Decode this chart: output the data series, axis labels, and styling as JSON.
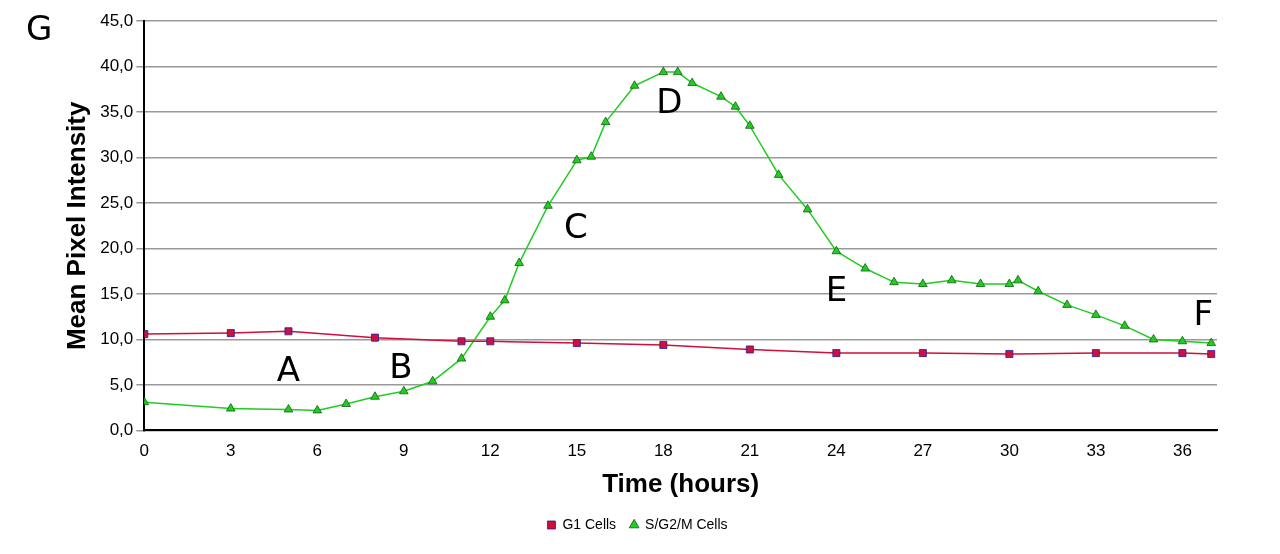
{
  "chart_data": {
    "type": "line",
    "xlabel": "Time (hours)",
    "ylabel": "Mean Pixel Intensity",
    "annotations": [
      "G",
      {
        "text": "A",
        "x": 5,
        "y": 2.3
      },
      {
        "text": "B",
        "x": 9,
        "y": 4.3
      },
      {
        "text": "C",
        "x": 14,
        "y": 24.7
      },
      {
        "text": "D",
        "x": 18,
        "y": 39.4
      },
      {
        "text": "E",
        "x": 24,
        "y": 19.7
      },
      {
        "text": "F",
        "x": 37,
        "y": 9.6
      }
    ],
    "xlim": [
      0,
      37.2
    ],
    "xticks": [
      0,
      3,
      6,
      9,
      12,
      15,
      18,
      21,
      24,
      27,
      30,
      33,
      36
    ],
    "ylim": [
      0,
      45
    ],
    "yticks": [
      {
        "value": 0,
        "label": "0,0"
      },
      {
        "value": 5,
        "label": "5,0"
      },
      {
        "value": 10,
        "label": "10,0"
      },
      {
        "value": 15,
        "label": "15,0"
      },
      {
        "value": 20,
        "label": "20,0"
      },
      {
        "value": 25,
        "label": "25,0"
      },
      {
        "value": 30,
        "label": "30,0"
      },
      {
        "value": 35,
        "label": "35,0"
      },
      {
        "value": 40,
        "label": "40,0"
      },
      {
        "value": 45,
        "label": "45,0"
      }
    ],
    "grid": "y",
    "legend": "bottom",
    "series": [
      {
        "name": "G1 Cells",
        "color": "#d0103a",
        "marker": "square",
        "x": [
          0,
          3,
          5,
          8,
          11,
          12,
          15,
          18,
          21,
          24,
          27,
          30,
          33,
          36,
          37
        ],
        "values": [
          10.6,
          10.7,
          10.9,
          10.2,
          9.8,
          9.8,
          9.6,
          9.4,
          8.9,
          8.5,
          8.5,
          8.4,
          8.5,
          8.5,
          8.4
        ]
      },
      {
        "name": "S/G2/M Cells",
        "color": "#22cc22",
        "marker": "triangle",
        "x": [
          0,
          3,
          5,
          6,
          7,
          8,
          9,
          10,
          11,
          12,
          12.5,
          13,
          14,
          15,
          15.5,
          16,
          17,
          18,
          18.5,
          19,
          20,
          20.5,
          21,
          22,
          23,
          24,
          25,
          26,
          27,
          28,
          29,
          30,
          30.3,
          31,
          32,
          33,
          34,
          35,
          36,
          37
        ],
        "values": [
          3.1,
          2.4,
          2.3,
          2.2,
          2.9,
          3.7,
          4.3,
          5.4,
          7.9,
          12.5,
          14.3,
          18.4,
          24.7,
          29.7,
          30.1,
          33.9,
          37.9,
          39.4,
          39.4,
          38.2,
          36.7,
          35.6,
          33.5,
          28.1,
          24.3,
          19.7,
          17.8,
          16.3,
          16.1,
          16.5,
          16.1,
          16.1,
          16.5,
          15.3,
          13.8,
          12.7,
          11.5,
          10,
          9.8,
          9.6
        ]
      }
    ]
  }
}
